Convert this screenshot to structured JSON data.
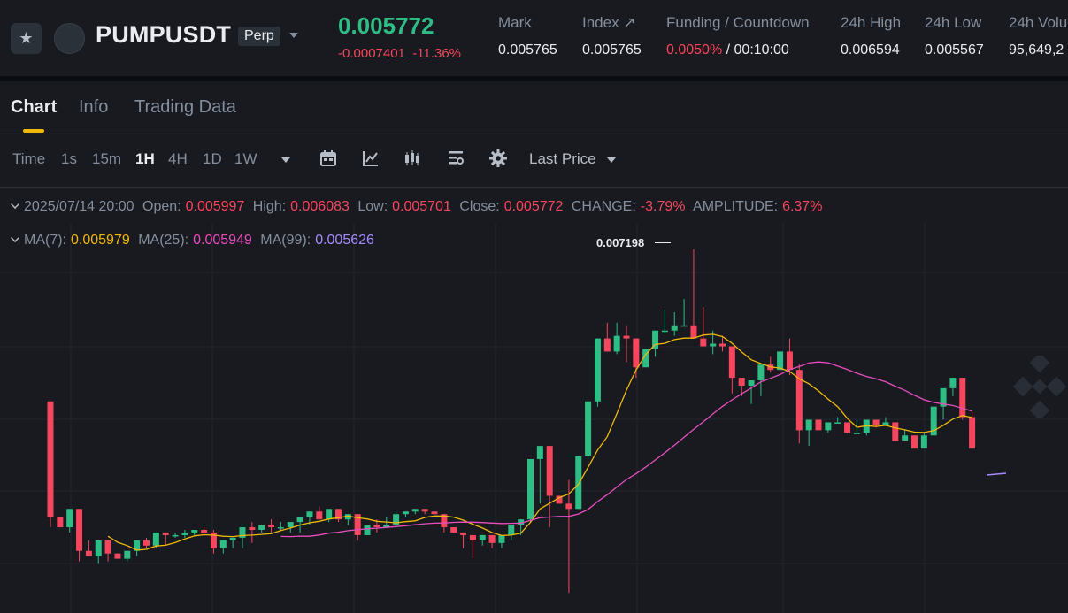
{
  "header": {
    "symbol": "PUMPUSDT",
    "badge": "Perp",
    "last_price": "0.005772",
    "change_abs": "-0.0007401",
    "change_pct": "-11.36%",
    "stats": [
      {
        "label": "Mark",
        "value": "0.005765"
      },
      {
        "label": "Index ↗",
        "value": "0.005765"
      },
      {
        "label": "Funding / Countdown",
        "value_rate": "0.0050%",
        "value_sep": " / ",
        "value_time": "00:10:00"
      },
      {
        "label": "24h High",
        "value": "0.006594"
      },
      {
        "label": "24h Low",
        "value": "0.005567"
      },
      {
        "label": "24h Volu",
        "value": "95,649,2"
      }
    ],
    "icons": {
      "favorite": "star-icon",
      "dropdown": "chevron-down-icon"
    }
  },
  "tabs": [
    {
      "label": "Chart",
      "active": true
    },
    {
      "label": "Info",
      "active": false
    },
    {
      "label": "Trading Data",
      "active": false
    }
  ],
  "toolbar": {
    "time_label": "Time",
    "intervals": [
      "1s",
      "15m",
      "1H",
      "4H",
      "1D",
      "1W"
    ],
    "active_interval": "1H",
    "price_source": "Last Price",
    "icons": [
      "more-intervals-icon",
      "calendar-icon",
      "indicators-icon",
      "candle-type-icon",
      "layout-icon",
      "settings-icon"
    ]
  },
  "legend": {
    "datetime": "2025/07/14 20:00",
    "open_label": "Open:",
    "open": "0.005997",
    "high_label": "High:",
    "high": "0.006083",
    "low_label": "Low:",
    "low": "0.005701",
    "close_label": "Close:",
    "close": "0.005772",
    "change_label": "CHANGE:",
    "change": "-3.79%",
    "amp_label": "AMPLITUDE:",
    "amp": "6.37%",
    "ma7_label": "MA(7):",
    "ma7": "0.005979",
    "ma25_label": "MA(25):",
    "ma25": "0.005949",
    "ma99_label": "MA(99):",
    "ma99": "0.005626"
  },
  "chart_data": {
    "type": "candlestick",
    "peak_label": "0.007198",
    "colors": {
      "up": "#2ebd85",
      "down": "#f6465d",
      "ma7": "#f0b90b",
      "ma25": "#e74ebd",
      "ma99": "#a68afc"
    },
    "candles": [
      [
        0.00662,
        0.00662,
        0.00618,
        0.00614
      ],
      [
        0.00618,
        0.00614,
        0.00614,
        0.00618
      ],
      [
        0.00614,
        0.00618,
        0.00621,
        0.00612
      ],
      [
        0.00621,
        0.00614,
        0.00605,
        0.00601
      ],
      [
        0.00605,
        0.00603,
        0.00603,
        0.00609
      ],
      [
        0.00603,
        0.00603,
        0.00609,
        0.006
      ],
      [
        0.00609,
        0.00602,
        0.00604,
        0.00601
      ],
      [
        0.00604,
        0.00603,
        0.00602,
        0.00604
      ],
      [
        0.00602,
        0.00603,
        0.00605,
        0.00601
      ],
      [
        0.00605,
        0.00603,
        0.00609,
        0.00603
      ],
      [
        0.00609,
        0.00606,
        0.00607,
        0.0061
      ],
      [
        0.00607,
        0.00606,
        0.00612,
        0.00606
      ],
      [
        0.00612,
        0.00607,
        0.00611,
        0.00612
      ],
      [
        0.00611,
        0.0061,
        0.00611,
        0.00612
      ],
      [
        0.00611,
        0.0061,
        0.00612,
        0.00613
      ],
      [
        0.00612,
        0.00611,
        0.00613,
        0.00613
      ],
      [
        0.00613,
        0.00612,
        0.00612,
        0.00614
      ],
      [
        0.00612,
        0.00613,
        0.00606,
        0.00604
      ],
      [
        0.00606,
        0.00604,
        0.00609,
        0.00604
      ],
      [
        0.00609,
        0.00606,
        0.0061,
        0.00609
      ],
      [
        0.0061,
        0.00606,
        0.00614,
        0.00608
      ],
      [
        0.00614,
        0.00608,
        0.00613,
        0.00616
      ],
      [
        0.00613,
        0.00612,
        0.00615,
        0.00614
      ],
      [
        0.00615,
        0.00612,
        0.00614,
        0.00617
      ],
      [
        0.00614,
        0.00613,
        0.00614,
        0.00616
      ],
      [
        0.00614,
        0.00612,
        0.00616,
        0.00612
      ],
      [
        0.00616,
        0.00614,
        0.00618,
        0.00612
      ],
      [
        0.00618,
        0.00615,
        0.0062,
        0.00618
      ],
      [
        0.0062,
        0.00619,
        0.00617,
        0.00622
      ],
      [
        0.00617,
        0.00616,
        0.00621,
        0.00617
      ],
      [
        0.00621,
        0.00616,
        0.00617,
        0.00621
      ],
      [
        0.00617,
        0.00615,
        0.00619,
        0.00619
      ],
      [
        0.00619,
        0.00616,
        0.00611,
        0.00609
      ],
      [
        0.00611,
        0.00611,
        0.00615,
        0.00612
      ],
      [
        0.00615,
        0.00612,
        0.00614,
        0.00617
      ],
      [
        0.00614,
        0.00618,
        0.00615,
        0.00616
      ],
      [
        0.00615,
        0.00617,
        0.00619,
        0.0062
      ],
      [
        0.00619,
        0.00618,
        0.0062,
        0.0062
      ],
      [
        0.0062,
        0.00619,
        0.00621,
        0.00621
      ],
      [
        0.00621,
        0.00619,
        0.0062,
        0.00619
      ],
      [
        0.0062,
        0.00619,
        0.00619,
        0.00619
      ],
      [
        0.00619,
        0.00618,
        0.00614,
        0.00612
      ],
      [
        0.00614,
        0.00612,
        0.00612,
        0.00612
      ],
      [
        0.00612,
        0.00609,
        0.00611,
        0.00606
      ],
      [
        0.00611,
        0.00608,
        0.00609,
        0.00602
      ],
      [
        0.00609,
        0.00607,
        0.00611,
        0.00608
      ],
      [
        0.00611,
        0.00609,
        0.00608,
        0.00606
      ],
      [
        0.00608,
        0.00607,
        0.00611,
        0.00606
      ],
      [
        0.00611,
        0.00609,
        0.00615,
        0.00613
      ],
      [
        0.00615,
        0.00611,
        0.00617,
        0.00616
      ],
      [
        0.00617,
        0.00616,
        0.0064,
        0.00617
      ],
      [
        0.0064,
        0.00623,
        0.00645,
        0.00636
      ],
      [
        0.00645,
        0.00644,
        0.00626,
        0.00614
      ],
      [
        0.00626,
        0.00624,
        0.00623,
        0.00626
      ],
      [
        0.00623,
        0.00632,
        0.00621,
        0.00589
      ],
      [
        0.00621,
        0.00633,
        0.00641,
        0.00628
      ],
      [
        0.00641,
        0.0064,
        0.00662,
        0.00651
      ],
      [
        0.00662,
        0.0066,
        0.00686,
        0.00677
      ],
      [
        0.00686,
        0.00684,
        0.00681,
        0.00692
      ],
      [
        0.00681,
        0.0068,
        0.00687,
        0.00692
      ],
      [
        0.00687,
        0.00677,
        0.00686,
        0.00691
      ],
      [
        0.00686,
        0.00683,
        0.00675,
        0.00671
      ],
      [
        0.00675,
        0.00676,
        0.00682,
        0.00675
      ],
      [
        0.00682,
        0.00679,
        0.00689,
        0.00682
      ],
      [
        0.00689,
        0.00688,
        0.00689,
        0.00697
      ],
      [
        0.00689,
        0.00687,
        0.00691,
        0.00696
      ],
      [
        0.00691,
        0.00693,
        0.00691,
        0.00701
      ],
      [
        0.00691,
        0.00691,
        0.00686,
        0.0072
      ],
      [
        0.00686,
        0.00686,
        0.00683,
        0.00698
      ],
      [
        0.00683,
        0.0068,
        0.00684,
        0.00689
      ],
      [
        0.00684,
        0.00681,
        0.00683,
        0.00687
      ],
      [
        0.00683,
        0.00678,
        0.00671,
        0.00665
      ],
      [
        0.00671,
        0.00664,
        0.00668,
        0.00664
      ],
      [
        0.00668,
        0.00669,
        0.0067,
        0.00661
      ],
      [
        0.0067,
        0.00667,
        0.00676,
        0.00664
      ],
      [
        0.00676,
        0.00673,
        0.00674,
        0.00679
      ],
      [
        0.00674,
        0.00678,
        0.00681,
        0.0068
      ],
      [
        0.00681,
        0.00686,
        0.00674,
        0.00672
      ],
      [
        0.00674,
        0.00676,
        0.00651,
        0.00646
      ],
      [
        0.00651,
        0.00645,
        0.00655,
        0.00652
      ],
      [
        0.00655,
        0.00652,
        0.00651,
        0.00653
      ],
      [
        0.00651,
        0.0065,
        0.00654,
        0.00653
      ],
      [
        0.00654,
        0.00654,
        0.00654,
        0.00656
      ],
      [
        0.00654,
        0.00652,
        0.0065,
        0.00652
      ],
      [
        0.0065,
        0.00652,
        0.0065,
        0.00655
      ],
      [
        0.0065,
        0.00649,
        0.00655,
        0.00651
      ],
      [
        0.00655,
        0.00652,
        0.00653,
        0.00655
      ],
      [
        0.00653,
        0.00654,
        0.00654,
        0.00656
      ],
      [
        0.00654,
        0.00654,
        0.00647,
        0.00652
      ],
      [
        0.00647,
        0.00651,
        0.00649,
        0.0065
      ],
      [
        0.00649,
        0.00648,
        0.00644,
        0.00648
      ],
      [
        0.00644,
        0.00647,
        0.00649,
        0.0065
      ],
      [
        0.00649,
        0.0065,
        0.0066,
        0.00651
      ],
      [
        0.0066,
        0.00655,
        0.00667,
        0.00663
      ],
      [
        0.00667,
        0.00664,
        0.00671,
        0.00666
      ],
      [
        0.00671,
        0.00668,
        0.00656,
        0.00655
      ],
      [
        0.00656,
        0.00658,
        0.00644,
        0.00644
      ]
    ]
  }
}
